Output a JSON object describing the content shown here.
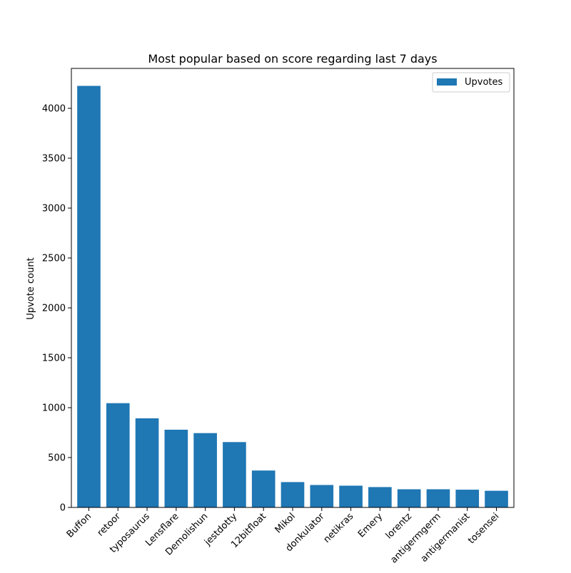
{
  "chart_data": {
    "type": "bar",
    "title": "Most popular based on score regarding last 7 days",
    "xlabel": "",
    "ylabel": "Upvote count",
    "categories": [
      "Buffon",
      "retoor",
      "typosaurus",
      "Lensflare",
      "Demolishun",
      "jestdotty",
      "12bitfloat",
      "Mikol",
      "donkulator",
      "netikras",
      "Emery",
      "lorentz",
      "antigermgerm",
      "antigermanist",
      "tosensei"
    ],
    "series": [
      {
        "name": "Upvotes",
        "color": "#1f77b4",
        "values": [
          4225,
          1045,
          893,
          779,
          745,
          655,
          370,
          254,
          225,
          218,
          204,
          182,
          182,
          178,
          167
        ]
      }
    ],
    "ylim": [
      0,
      4400
    ],
    "yticks": [
      0,
      500,
      1000,
      1500,
      2000,
      2500,
      3000,
      3500,
      4000
    ],
    "grid": false,
    "legend": {
      "position": "top-right",
      "entries": [
        "Upvotes"
      ]
    }
  }
}
